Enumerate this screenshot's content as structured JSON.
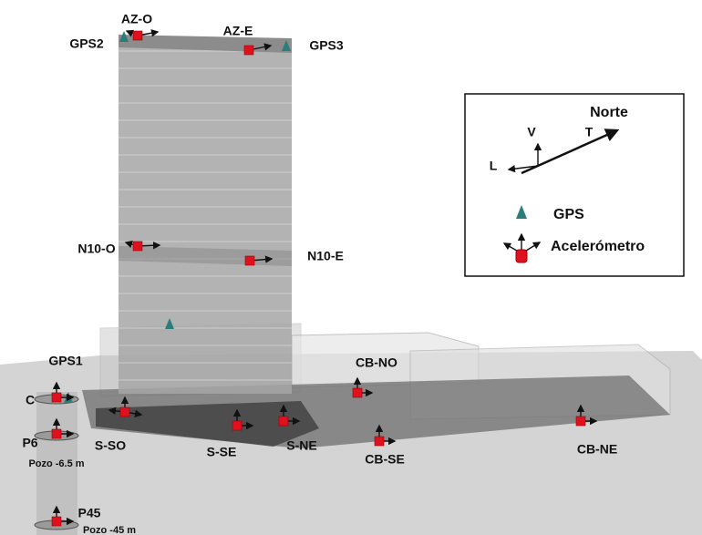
{
  "sensors": {
    "az_o": "AZ-O",
    "az_e": "AZ-E",
    "gps2": "GPS2",
    "gps3": "GPS3",
    "n10_o": "N10-O",
    "n10_e": "N10-E",
    "gps1": "GPS1",
    "c": "C",
    "p6": "P6",
    "pozo_6": "Pozo -6.5 m",
    "p45": "P45",
    "pozo_45": "Pozo -45 m",
    "s_so": "S-SO",
    "s_se": "S-SE",
    "s_ne": "S-NE",
    "cb_no": "CB-NO",
    "cb_se": "CB-SE",
    "cb_ne": "CB-NE"
  },
  "legend": {
    "north": "Norte",
    "v": "V",
    "t": "T",
    "l": "L",
    "gps": "GPS",
    "accel": "Acelerómetro"
  }
}
